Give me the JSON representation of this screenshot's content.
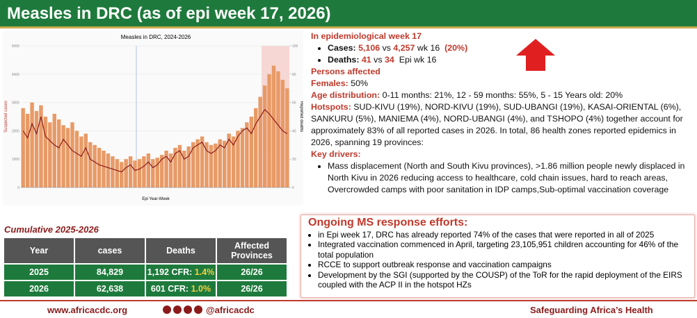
{
  "header": {
    "title": "Measles in DRC (as of epi week 17, 2026)"
  },
  "chart_data": {
    "type": "bar",
    "title": "Measles in DRC, 2024-2026",
    "xlabel": "Epi Year-Week",
    "ylabel": "Suspected cases",
    "y2label": "Reported deaths",
    "ylim": [
      0,
      5000
    ],
    "yticks": [
      0,
      1000,
      2000,
      3000,
      4000,
      5000
    ],
    "y2lim": [
      0,
      100
    ],
    "y2ticks": [
      0,
      20,
      40,
      60,
      80,
      100
    ],
    "series": [
      {
        "color": "#e89a66",
        "values": [
          2800,
          2600,
          3000,
          2700,
          2900,
          2500,
          2300,
          2600,
          2400,
          2200,
          2100,
          2300,
          2000,
          1800,
          1900,
          1600,
          1500,
          1400,
          1300,
          1200,
          1100,
          1000,
          900,
          1000,
          1100,
          950,
          1000,
          1100,
          1200,
          1000,
          1050,
          1150,
          1300,
          1200,
          1400,
          1500,
          1300,
          1450,
          1600,
          1700,
          1800,
          1600,
          1500,
          1550,
          1700,
          1650,
          1900,
          1800,
          2000,
          2100,
          2300,
          2500,
          2800,
          3200,
          3600,
          4000,
          4300,
          4100,
          3800,
          3500
        ]
      },
      {
        "type": "line",
        "axis": "y2",
        "color": "#8b1a1a",
        "values": [
          40,
          35,
          45,
          38,
          50,
          36,
          33,
          30,
          28,
          34,
          30,
          26,
          24,
          22,
          28,
          20,
          18,
          16,
          15,
          14,
          13,
          12,
          11,
          14,
          16,
          12,
          13,
          15,
          18,
          14,
          16,
          20,
          22,
          18,
          24,
          26,
          20,
          22,
          28,
          30,
          32,
          26,
          24,
          26,
          30,
          28,
          34,
          30,
          36,
          40,
          42,
          38,
          45,
          50,
          55,
          52,
          48,
          44,
          40,
          38
        ]
      }
    ]
  },
  "epi": {
    "heading": "In epidemiological week 17",
    "cases_label": "Cases:",
    "cases_now": "5,106",
    "vs1": "vs",
    "cases_prev": "4,257",
    "wk1": "wk 16",
    "change": "(20%)",
    "deaths_label": "Deaths:",
    "deaths_now": "41",
    "vs2": "vs",
    "deaths_prev": "34",
    "wk2": "Epi wk 16"
  },
  "persons": {
    "heading": "Persons affected",
    "females_label": "Females:",
    "females": "50%",
    "age_label": "Age distribution:",
    "age": "0-11 months: 21%, 12 - 59 months: 55%, 5 - 15 Years old: 20%",
    "hotspots_label": "Hotspots:",
    "hotspots": "SUD-KIVU (19%), NORD-KIVU (19%), SUD-UBANGI (19%), KASAI-ORIENTAL (6%), SANKURU (5%), MANIEMA (4%), NORD-UBANGI (4%), and TSHOPO (4%) together account for approximately 83% of all reported cases in 2026. In total, 86 health zones reported epidemics in 2026, spanning 19 provinces:",
    "drivers_heading": "Key drivers:",
    "drivers": [
      "Mass displacement (North and South Kivu provinces), >1.86 million people newly displaced in North Kivu in 2026 reducing access to healthcare, cold chain issues, hard to reach areas, Overcrowded camps with poor sanitation in IDP camps,Sub-optimal vaccination coverage"
    ]
  },
  "table": {
    "caption": "Cumulative 2025-2026",
    "headers": [
      "Year",
      "cases",
      "Deaths",
      "Affected Provinces"
    ],
    "rows": [
      {
        "year": "2025",
        "cases": "84,829",
        "deaths": "1,192 CFR:",
        "cfr": "1.4%",
        "provinces": "26/26"
      },
      {
        "year": "2026",
        "cases": "62,638",
        "deaths": "601 CFR:",
        "cfr": "1.0%",
        "provinces": "26/26"
      }
    ]
  },
  "response": {
    "title": "Ongoing MS response efforts:",
    "items": [
      "in Epi week 17, DRC has already reported 74% of the cases that were reported in all of 2025",
      "Integrated vaccination commenced in April, targeting 23,105,951 children accounting for 46% of the total population",
      "RCCE to support outbreak response and vaccination campaigns",
      "Development by the SGI (supported by the COUSP) of the ToR for the rapid deployment of the EIRS coupled with the ACP II in the hotspot HZs"
    ]
  },
  "footer": {
    "website": "www.africacdc.org",
    "handle": "@africacdc",
    "tagline": "Safeguarding Africa’s Health"
  }
}
